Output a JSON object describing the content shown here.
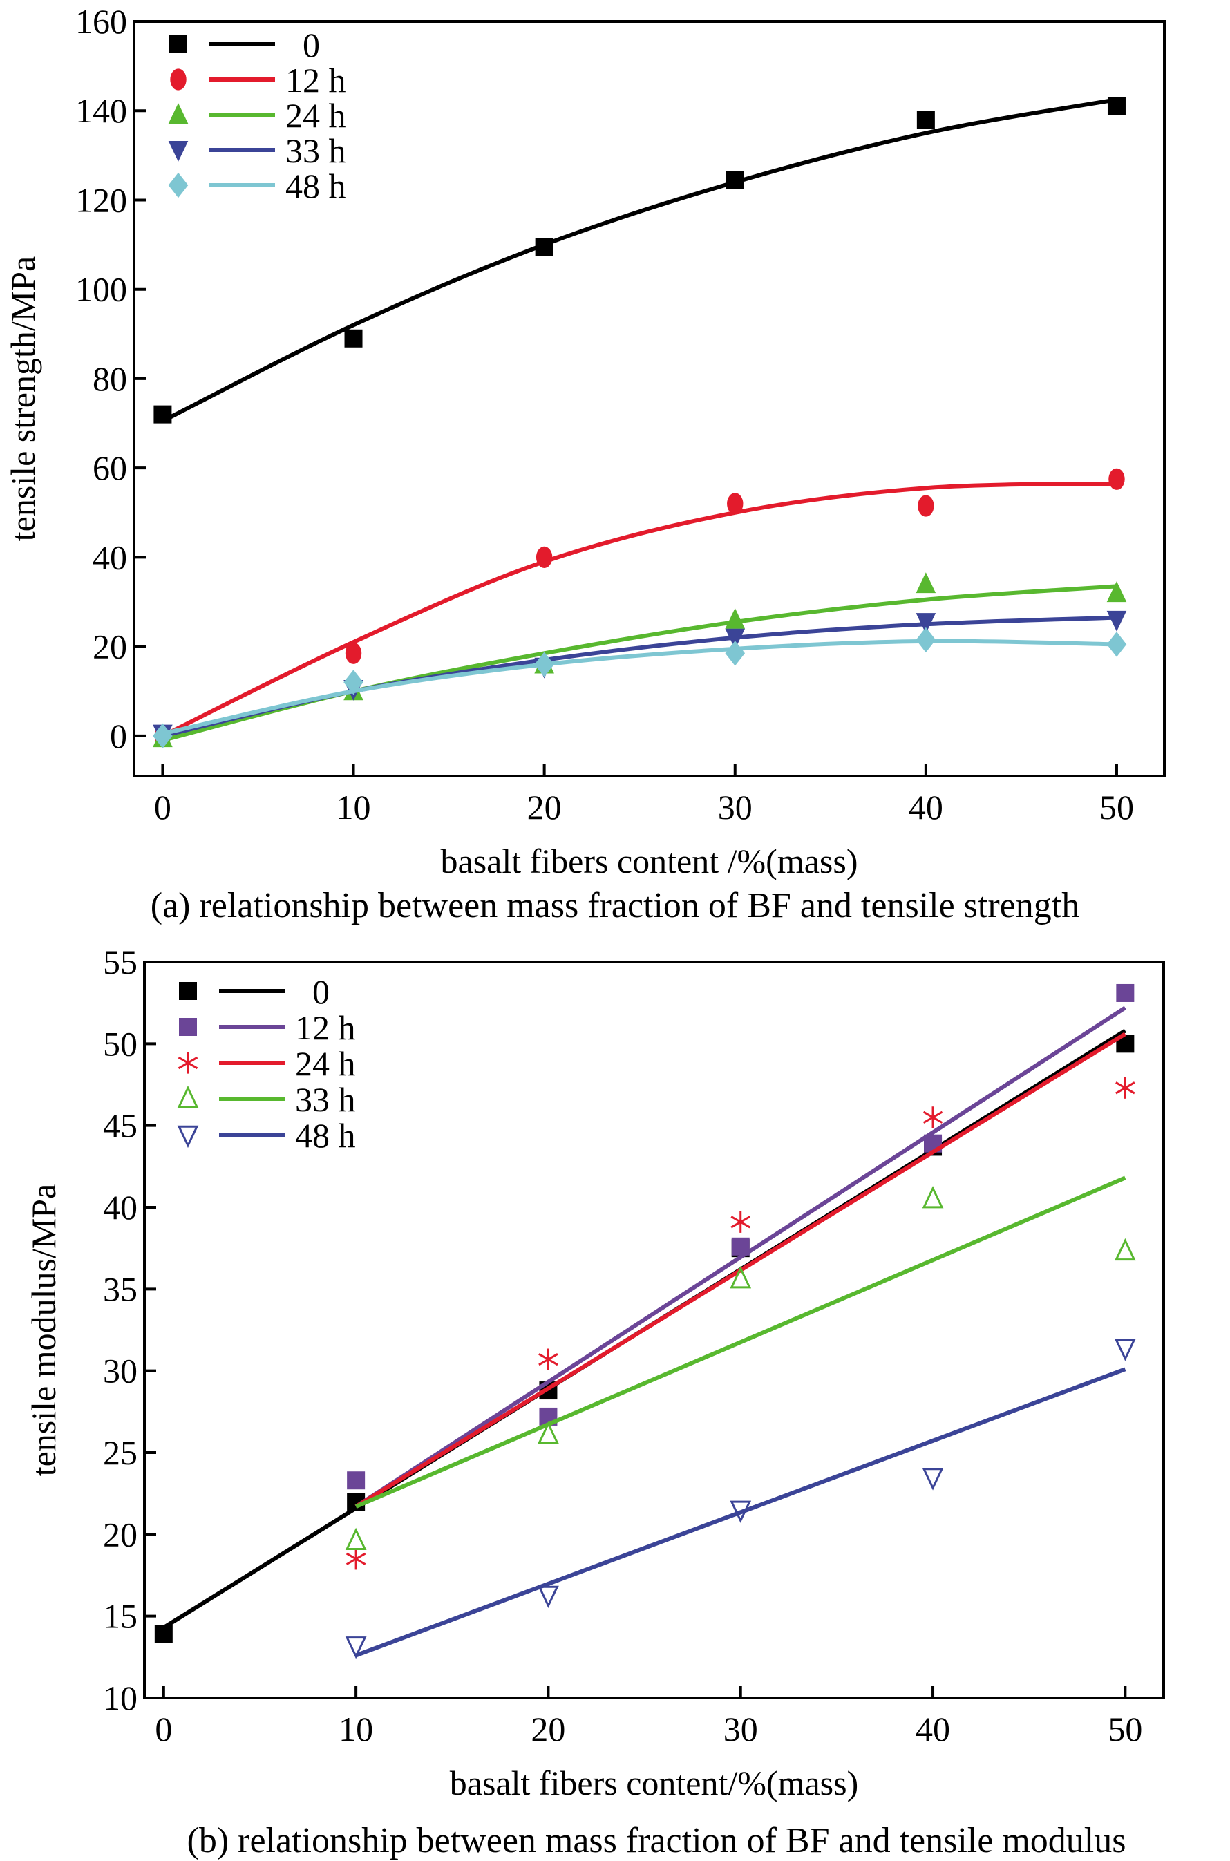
{
  "chart_data": [
    {
      "type": "scatter",
      "panel": "a",
      "caption": "(a) relationship between mass fraction of BF and tensile strength",
      "xlabel": "basalt fibers content /%(mass)",
      "ylabel": "tensile strength/MPa",
      "xlim": [
        -1.5,
        52.5
      ],
      "ylim": [
        -9,
        160
      ],
      "xticks": [
        0,
        10,
        20,
        30,
        40,
        50
      ],
      "yticks": [
        0,
        20,
        40,
        60,
        80,
        100,
        120,
        140,
        160
      ],
      "grid": false,
      "legend_position": "top-left",
      "x": [
        0,
        10,
        20,
        30,
        40,
        50
      ],
      "series": [
        {
          "name": "0",
          "color": "#000000",
          "marker": "square",
          "values": [
            72,
            89,
            109.5,
            124.5,
            138,
            141
          ],
          "fit": [
            70.5,
            92,
            110,
            124,
            135,
            142.5
          ]
        },
        {
          "name": "12 h",
          "color": "#e31b2c",
          "marker": "circle",
          "values": [
            0,
            18.5,
            40,
            52,
            51.5,
            57.5
          ],
          "fit": [
            0,
            21,
            39,
            50,
            55.5,
            56.5
          ]
        },
        {
          "name": "24 h",
          "color": "#58b82f",
          "marker": "triangle-up",
          "values": [
            -0.5,
            10,
            16,
            26,
            34,
            32
          ],
          "fit": [
            -1,
            10,
            18.5,
            25.5,
            30.5,
            33.5
          ]
        },
        {
          "name": "33 h",
          "color": "#3b4497",
          "marker": "triangle-down",
          "values": [
            0.5,
            10.5,
            15.5,
            22,
            25.5,
            26
          ],
          "fit": [
            0,
            10,
            17,
            22,
            25,
            26.5
          ]
        },
        {
          "name": "48 h",
          "color": "#7ec6d2",
          "marker": "diamond",
          "values": [
            0,
            12,
            16,
            18.5,
            21.5,
            20.5
          ],
          "fit": [
            0.5,
            10,
            16,
            19.5,
            21.2,
            20.5
          ]
        }
      ]
    },
    {
      "type": "scatter",
      "panel": "b",
      "caption": "(b) relationship between mass fraction of BF and tensile modulus",
      "xlabel": "basalt fibers content/%(mass)",
      "ylabel": "tensile modulus/MPa",
      "xlim": [
        -1,
        52
      ],
      "ylim": [
        10,
        55
      ],
      "xticks": [
        0,
        10,
        20,
        30,
        40,
        50
      ],
      "yticks": [
        10,
        15,
        20,
        25,
        30,
        35,
        40,
        45,
        50,
        55
      ],
      "grid": false,
      "legend_position": "top-left",
      "series": [
        {
          "name": "0",
          "color": "#000000",
          "marker": "square",
          "x": [
            0,
            10,
            20,
            30,
            40,
            50
          ],
          "values": [
            13.9,
            22,
            28.8,
            37.5,
            43.7,
            50
          ],
          "fit_x": [
            0,
            50
          ],
          "fit": [
            14.3,
            50.8
          ]
        },
        {
          "name": "12 h",
          "color": "#6b4597",
          "marker": "square",
          "x": [
            10,
            20,
            30,
            40,
            50
          ],
          "values": [
            23.3,
            27.2,
            37.6,
            43.9,
            53.1
          ],
          "fit_x": [
            10,
            50
          ],
          "fit": [
            21.7,
            52.2
          ]
        },
        {
          "name": "24 h",
          "color": "#e31b2c",
          "marker": "asterisk",
          "x": [
            10,
            20,
            30,
            40,
            50
          ],
          "values": [
            18.5,
            30.7,
            39.1,
            45.5,
            47.3
          ],
          "fit_x": [
            10,
            50
          ],
          "fit": [
            21.7,
            50.6
          ]
        },
        {
          "name": "33 h",
          "color": "#58b82f",
          "marker": "triangle-up-open",
          "x": [
            10,
            20,
            30,
            40,
            50
          ],
          "values": [
            19.6,
            26.1,
            35.6,
            40.5,
            37.3
          ],
          "fit_x": [
            10,
            50
          ],
          "fit": [
            21.7,
            41.8
          ]
        },
        {
          "name": "48 h",
          "color": "#3b4497",
          "marker": "triangle-down-open",
          "x": [
            10,
            20,
            30,
            40,
            50
          ],
          "values": [
            13.2,
            16.3,
            21.5,
            23.5,
            31.4
          ],
          "fit_x": [
            10,
            50
          ],
          "fit": [
            12.6,
            30.1
          ]
        }
      ]
    }
  ]
}
